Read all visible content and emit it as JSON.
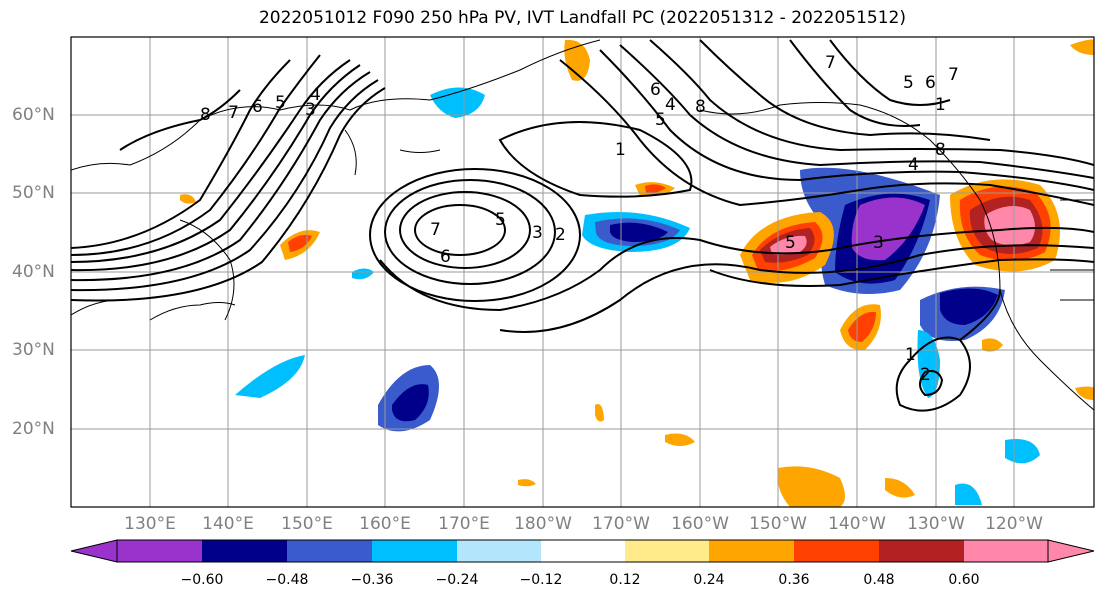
{
  "title": "2022051012 F090 250 hPa PV, IVT Landfall PC (2022051312 - 2022051512)",
  "lat_labels": [
    "60°N",
    "50°N",
    "40°N",
    "30°N",
    "20°N"
  ],
  "lon_labels": [
    "130°E",
    "140°E",
    "150°E",
    "160°E",
    "170°E",
    "180°W",
    "170°W",
    "160°W",
    "150°W",
    "140°W",
    "130°W",
    "120°W"
  ],
  "colorbar": {
    "ticks": [
      "−0.60",
      "−0.48",
      "−0.36",
      "−0.24",
      "−0.12",
      "0.12",
      "0.24",
      "0.36",
      "0.48",
      "0.60"
    ],
    "colors": [
      "#9933cc",
      "#00008b",
      "#3a5bcc",
      "#00bfff",
      "#b3e5fc",
      "#ffffff",
      "#ffeb8a",
      "#ffa500",
      "#ff4000",
      "#b22222",
      "#ff88aa"
    ]
  },
  "contour_labels": [
    "8",
    "7",
    "6",
    "5",
    "4",
    "3",
    "7",
    "6",
    "5",
    "3",
    "2",
    "1",
    "6",
    "5",
    "4",
    "8",
    "7",
    "5",
    "3",
    "5",
    "6",
    "7",
    "1",
    "2",
    "1",
    "8",
    "4"
  ]
}
